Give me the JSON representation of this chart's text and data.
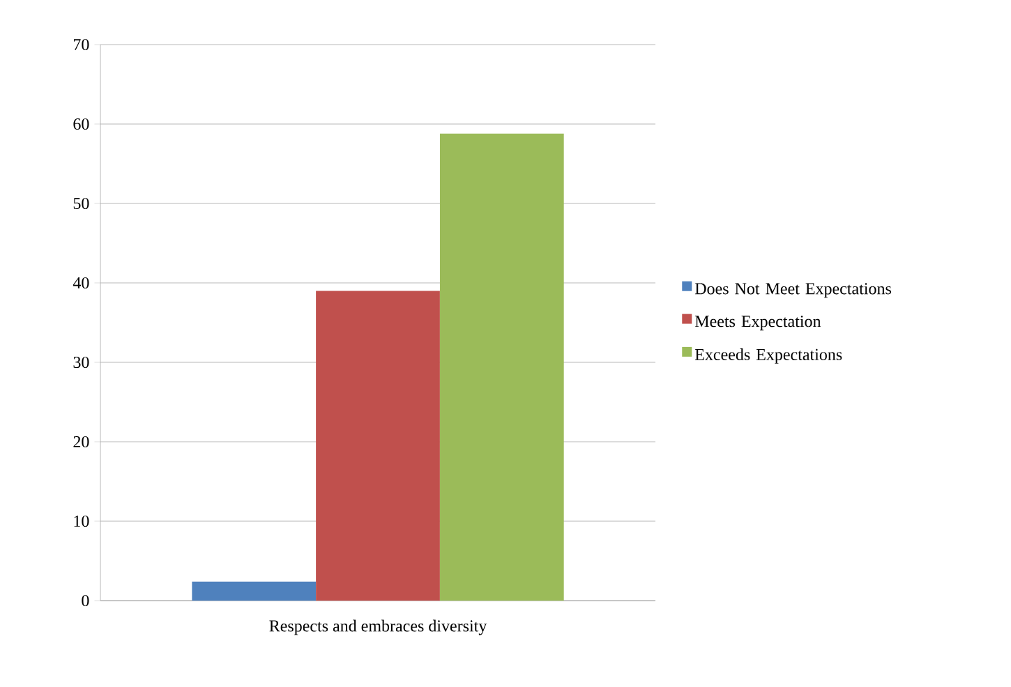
{
  "chart_data": {
    "type": "bar",
    "categories": [
      "Respects and embraces diversity"
    ],
    "series": [
      {
        "name": "Does Not Meet Expectations",
        "color": "#4f81bd",
        "values": [
          2.4
        ]
      },
      {
        "name": "Meets Expectation",
        "color": "#c0504d",
        "values": [
          39
        ]
      },
      {
        "name": "Exceeds Expectations",
        "color": "#9bbb59",
        "values": [
          58.8
        ]
      }
    ],
    "ylim": [
      0,
      70
    ],
    "yticks": [
      0,
      10,
      20,
      30,
      40,
      50,
      60,
      70
    ],
    "grid": "y",
    "legend": "right"
  }
}
